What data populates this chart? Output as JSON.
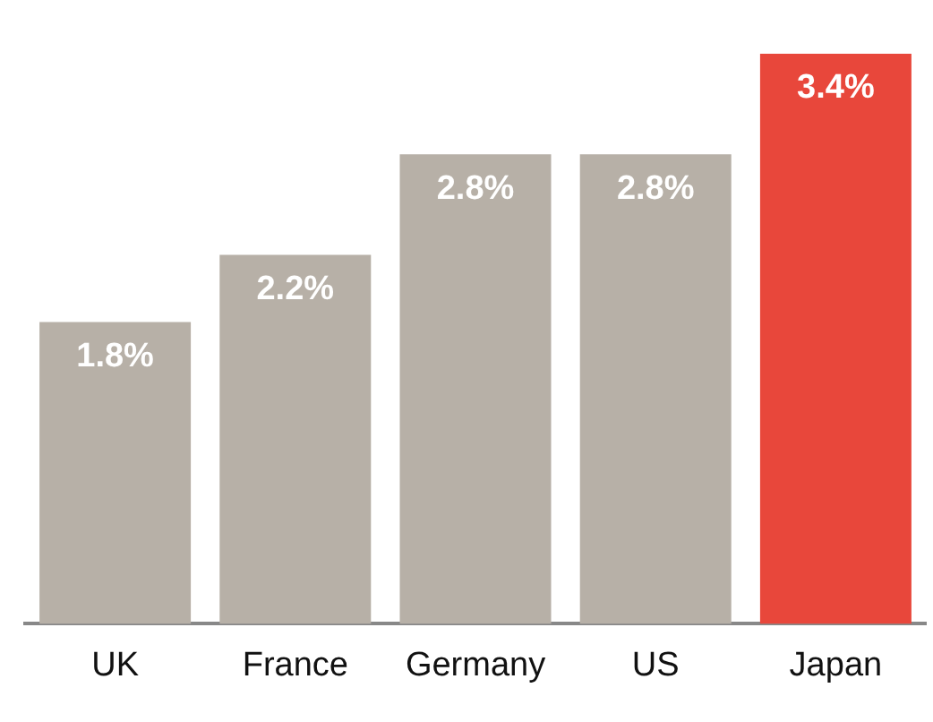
{
  "chart_data": {
    "type": "bar",
    "categories": [
      "UK",
      "France",
      "Germany",
      "US",
      "Japan"
    ],
    "values": [
      1.8,
      2.2,
      2.8,
      2.8,
      3.4
    ],
    "colors": [
      "#b7b0a7",
      "#b7b0a7",
      "#b7b0a7",
      "#b7b0a7",
      "#e8473b"
    ],
    "value_labels": [
      "1.8%",
      "2.2%",
      "2.8%",
      "2.8%",
      "3.4%"
    ],
    "grid": false,
    "legend": false
  }
}
